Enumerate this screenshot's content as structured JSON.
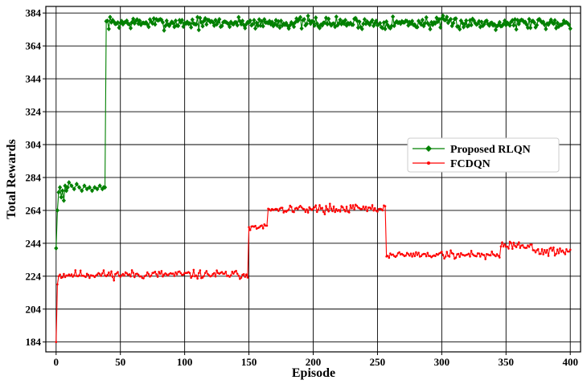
{
  "chart_data": {
    "type": "line",
    "title": "",
    "xlabel": "Episode",
    "ylabel": "Total Rewards",
    "xlim": [
      -8,
      408
    ],
    "ylim": [
      178,
      388
    ],
    "xticks": [
      0,
      50,
      100,
      150,
      200,
      250,
      300,
      350,
      400
    ],
    "yticks": [
      184,
      204,
      224,
      244,
      264,
      284,
      304,
      324,
      344,
      364,
      384
    ],
    "grid": true,
    "legend_position": "center-right",
    "series": [
      {
        "name": "Proposed RLQN",
        "color": "#008000",
        "marker": "diamond",
        "segments": [
          {
            "x": [
              0,
              1,
              2,
              3,
              4,
              5,
              6,
              7,
              8,
              9,
              10,
              12,
              14,
              16,
              18,
              20,
              22,
              24,
              26,
              28,
              30,
              32,
              34,
              36,
              37,
              38
            ],
            "y": [
              241,
              264,
              275,
              278,
              272,
              276,
              270,
              279,
              276,
              278,
              281,
              279,
              277,
              280,
              278,
              276,
              279,
              277,
              278,
              276,
              278,
              277,
              279,
              277,
              278,
              278
            ]
          },
          {
            "start": 39,
            "end": 400,
            "base": 378,
            "noise": 1.8,
            "seed": 7
          }
        ]
      },
      {
        "name": "FCDQN",
        "color": "#ff0000",
        "marker": "star",
        "segments": [
          {
            "x": [
              0,
              1,
              2,
              3,
              4
            ],
            "y": [
              184,
              219,
              224,
              225,
              223
            ]
          },
          {
            "start": 5,
            "end": 149,
            "base": 225,
            "noise": 1.3,
            "seed": 11
          },
          {
            "start": 150,
            "end": 164,
            "base": 254,
            "noise": 1.0,
            "seed": 13
          },
          {
            "start": 165,
            "end": 256,
            "base": 265,
            "noise": 1.2,
            "seed": 17
          },
          {
            "start": 257,
            "end": 345,
            "base": 237,
            "noise": 1.2,
            "seed": 19
          },
          {
            "start": 346,
            "end": 370,
            "base": 243,
            "noise": 1.4,
            "seed": 23
          },
          {
            "start": 371,
            "end": 400,
            "base": 239,
            "noise": 1.3,
            "seed": 29
          }
        ]
      }
    ]
  }
}
